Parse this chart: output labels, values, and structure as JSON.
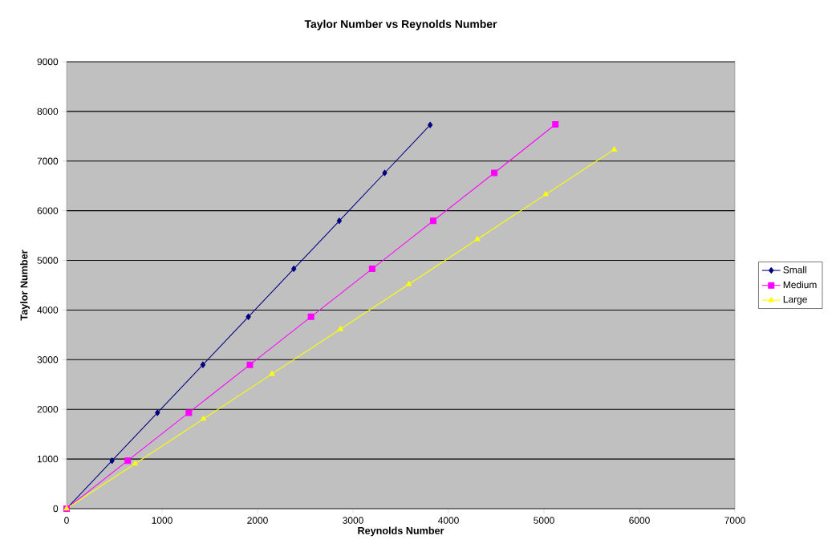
{
  "chart_data": {
    "type": "line",
    "title": "Taylor Number vs Reynolds Number",
    "xlabel": "Reynolds Number",
    "ylabel": "Taylor Number",
    "xlim": [
      0,
      7000
    ],
    "xticks": [
      0,
      1000,
      2000,
      3000,
      4000,
      5000,
      6000,
      7000
    ],
    "ylim": [
      0,
      9000
    ],
    "yticks": [
      0,
      1000,
      2000,
      3000,
      4000,
      5000,
      6000,
      7000,
      8000,
      9000
    ],
    "grid": "y",
    "legend": "right",
    "series": [
      {
        "name": "Small",
        "color": "#000080",
        "marker": "diamond",
        "x": [
          0,
          476,
          952,
          1428,
          1904,
          2380,
          2856,
          3332,
          3808
        ],
        "values": [
          0,
          966,
          1932,
          2898,
          3864,
          4830,
          5796,
          6762,
          7728
        ]
      },
      {
        "name": "Medium",
        "color": "#ff00ff",
        "marker": "square",
        "x": [
          0,
          640,
          1280,
          1920,
          2560,
          3200,
          3840,
          4480,
          5120
        ],
        "values": [
          0,
          966,
          1932,
          2898,
          3864,
          4830,
          5796,
          6762,
          7740
        ]
      },
      {
        "name": "Large",
        "color": "#ffff00",
        "marker": "triangle",
        "x": [
          0,
          717,
          1434,
          2151,
          2868,
          3585,
          4302,
          5019,
          5736
        ],
        "values": [
          0,
          904,
          1808,
          2712,
          3616,
          4520,
          5424,
          6328,
          7232
        ]
      }
    ]
  }
}
